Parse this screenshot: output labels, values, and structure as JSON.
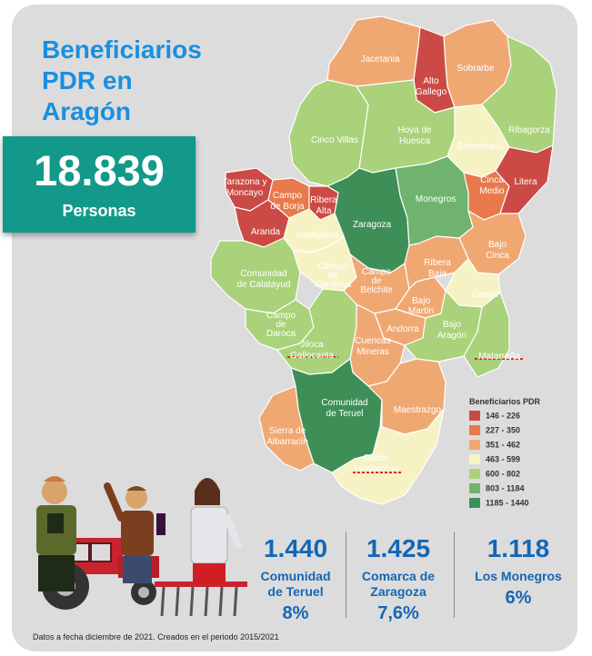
{
  "title_lines": [
    "Beneficiarios",
    "PDR en",
    "Aragón"
  ],
  "total": {
    "value": "18.839",
    "label": "Personas"
  },
  "legend": {
    "title": "Beneficiarios PDR",
    "items": [
      {
        "range": "146 - 226",
        "color": "#cc4a45"
      },
      {
        "range": "227 - 350",
        "color": "#e8794a"
      },
      {
        "range": "351 - 462",
        "color": "#f0a873"
      },
      {
        "range": "463 - 599",
        "color": "#f7f2c4"
      },
      {
        "range": "600 - 802",
        "color": "#a9d27a"
      },
      {
        "range": "803 - 1184",
        "color": "#6fb36e"
      },
      {
        "range": "1185 - 1440",
        "color": "#3e8f57"
      }
    ]
  },
  "comarcas": {
    "jacetania": "Jacetania",
    "alto_gallego": "Alto Gallego",
    "sobrarbe": "Sobrarbe",
    "ribagorza": "Ribagorza",
    "cinco_villas": "Cinco Villas",
    "hoya_huesca": "Hoya de Huesca",
    "somontano": "Somontano",
    "cinca_medio": "Cinca Medio",
    "litera": "Litera",
    "tarazona": "Tarazona y Moncayo",
    "campo_borja": "Campo de Borja",
    "ribera_alta": "Ribera Alta",
    "zaragoza": "Zaragoza",
    "monegros": "Monegros",
    "aranda": "Aranda",
    "valdejalon": "Valdejalon",
    "bajo_cinca": "Bajo Cinca",
    "calatayud": "Comunidad de Calatayud",
    "campo_carinena": "Campo de Cariñena",
    "campo_belchite": "Campo de Belchite",
    "ribera_baja": "Ribera Baja",
    "caspe": "Caspe",
    "bajo_martin": "Bajo Martín",
    "campo_daroca": "Campo de Daroca",
    "andorra": "Andorra",
    "bajo_aragon": "Bajo Aragón",
    "jiloca": "Jiloca Gallocanta",
    "cuencas_mineras": "Cuencas Mineras",
    "matarrana": "Matarraña",
    "comunidad_teruel": "Comunidad de Teruel",
    "maestrazgo": "Maestrazgo",
    "sierra_albarracin": "Sierra de Albarracín",
    "gudar": "Gúdar Javalambre"
  },
  "stats": [
    {
      "value": "1.440",
      "name_lines": [
        "Comunidad",
        "de Teruel"
      ],
      "pct": "8%"
    },
    {
      "value": "1.425",
      "name_lines": [
        "Comarca de",
        "Zaragoza"
      ],
      "pct": "7,6%"
    },
    {
      "value": "1.118",
      "name_lines": [
        "Los Monegros"
      ],
      "pct": "6%"
    }
  ],
  "footnote": "Datos a fecha diciembre de 2021. Creados en el periodo 2015/2021"
}
